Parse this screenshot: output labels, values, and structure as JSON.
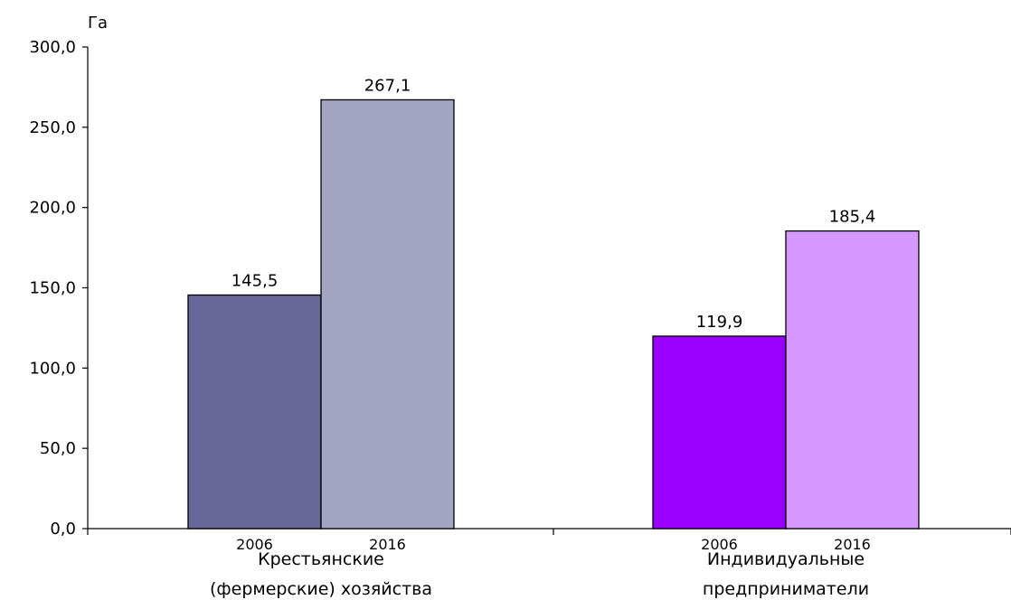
{
  "chart_data": {
    "type": "bar",
    "ylabel": "Га",
    "ylim": [
      0,
      300
    ],
    "y_ticks": [
      "0,0",
      "50,0",
      "100,0",
      "150,0",
      "200,0",
      "250,0",
      "300,0"
    ],
    "y_tick_values": [
      0,
      50,
      100,
      150,
      200,
      250,
      300
    ],
    "grid": false,
    "legend": "none",
    "groups": [
      {
        "label_lines": [
          "Крестьянские",
          "(фермерские) хозяйства"
        ],
        "bars": [
          {
            "year": "2006",
            "value": 145.5,
            "label": "145,5",
            "color": "#666699"
          },
          {
            "year": "2016",
            "value": 267.1,
            "label": "267,1",
            "color": "#A3A3C2"
          }
        ]
      },
      {
        "label_lines": [
          "Индивидуальные",
          "предприниматели"
        ],
        "bars": [
          {
            "year": "2006",
            "value": 119.9,
            "label": "119,9",
            "color": "#9900FF"
          },
          {
            "year": "2016",
            "value": 185.4,
            "label": "185,4",
            "color": "#D699FF"
          }
        ]
      }
    ]
  }
}
